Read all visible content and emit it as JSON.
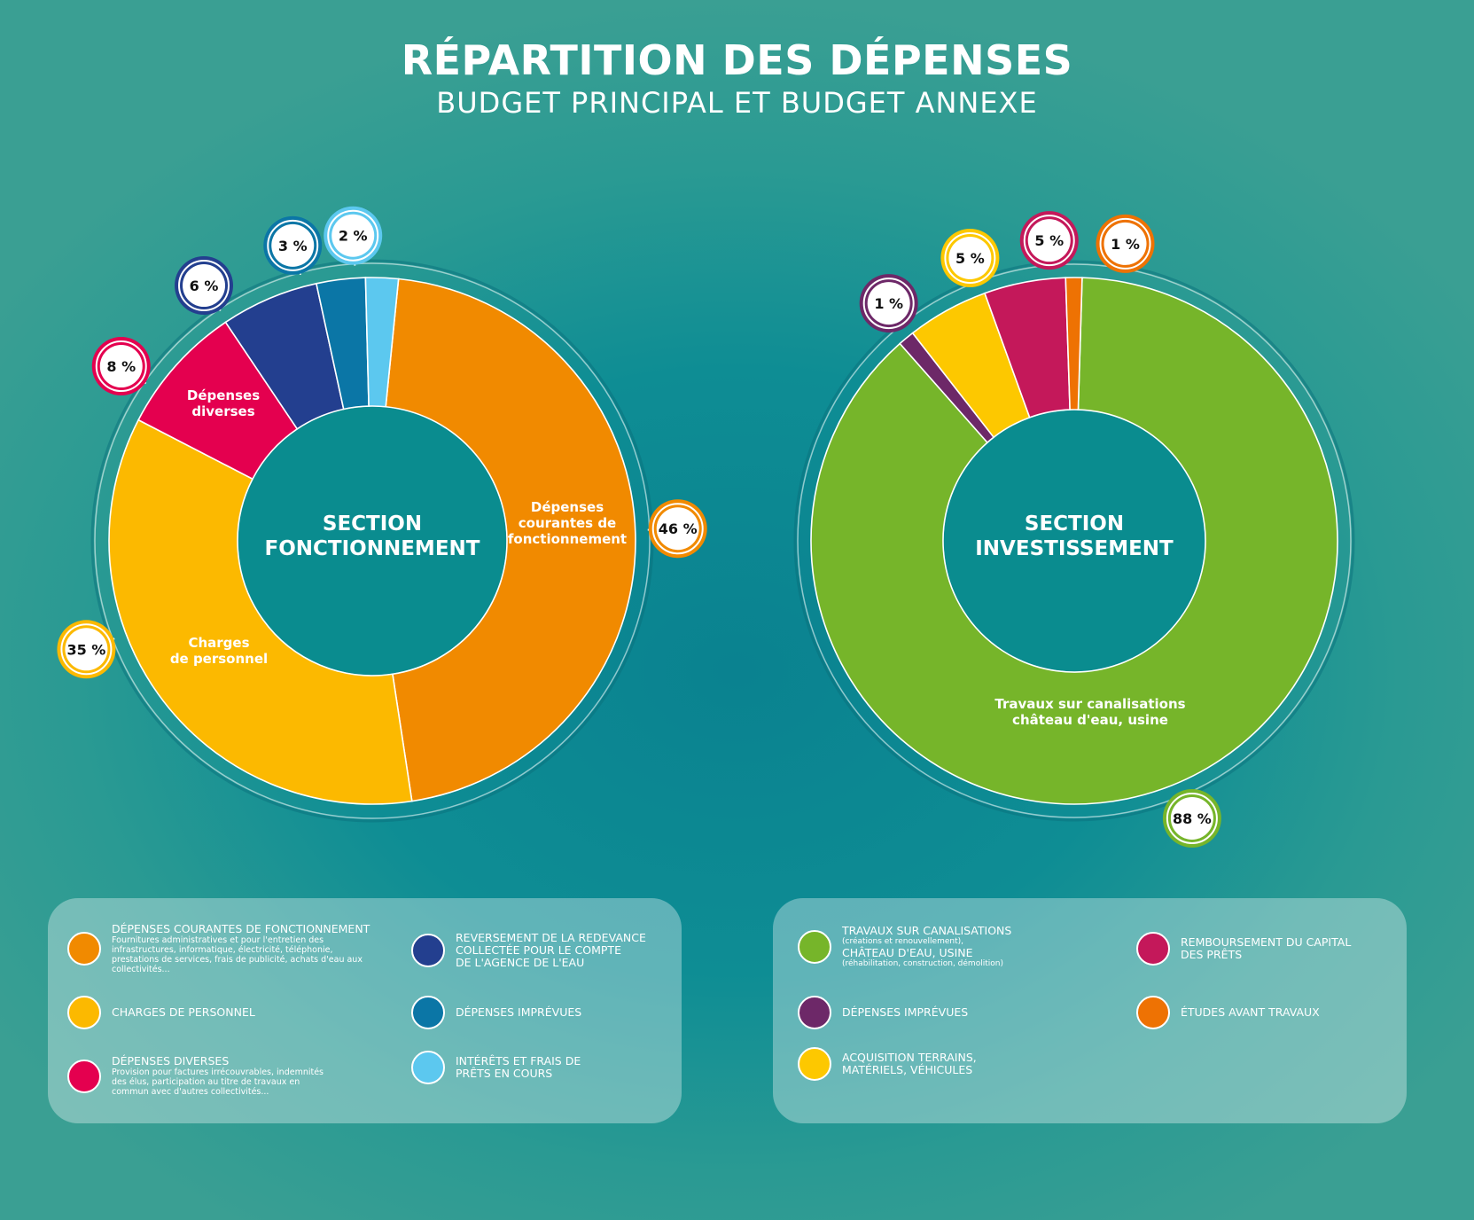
{
  "header": {
    "title": "RÉPARTITION DES DÉPENSES",
    "subtitle": "BUDGET PRINCIPAL ET BUDGET ANNEXE"
  },
  "colors": {
    "orange": "#f18a00",
    "yellow": "#fcb900",
    "crimson": "#e4004f",
    "navy": "#233f8f",
    "blue": "#0b76a6",
    "skyblue": "#5cc8ef",
    "green": "#76b52a",
    "purple": "#6d2868",
    "gold": "#fdc800",
    "magenta": "#c4185a",
    "darkorange": "#ee7203",
    "center": "#0a8c8f"
  },
  "chart_data": [
    {
      "type": "pie",
      "center_label": [
        "SECTION",
        "FONCTIONNEMENT"
      ],
      "slices": [
        {
          "key": "courantes",
          "value": 46,
          "badge": "46 %",
          "label": [
            "Dépenses",
            "courantes de",
            "fonctionnement"
          ],
          "color": "#f18a00"
        },
        {
          "key": "personnel",
          "value": 35,
          "badge": "35 %",
          "label": [
            "Charges",
            "de personnel"
          ],
          "color": "#fcb900"
        },
        {
          "key": "diverses",
          "value": 8,
          "badge": "8 %",
          "label": [
            "Dépenses",
            "diverses"
          ],
          "color": "#e4004f"
        },
        {
          "key": "reversement",
          "value": 6,
          "badge": "6 %",
          "label": [],
          "color": "#233f8f"
        },
        {
          "key": "imprevues",
          "value": 3,
          "badge": "3 %",
          "label": [],
          "color": "#0b76a6"
        },
        {
          "key": "interets",
          "value": 2,
          "badge": "2 %",
          "label": [],
          "color": "#5cc8ef"
        }
      ]
    },
    {
      "type": "pie",
      "center_label": [
        "SECTION",
        "INVESTISSEMENT"
      ],
      "slices": [
        {
          "key": "travaux",
          "value": 88,
          "badge": "88 %",
          "label": [
            "Travaux sur canalisations",
            "château d'eau, usine"
          ],
          "color": "#76b52a"
        },
        {
          "key": "imprevues",
          "value": 1,
          "badge": "1 %",
          "label": [],
          "color": "#6d2868"
        },
        {
          "key": "acquisition",
          "value": 5,
          "badge": "5 %",
          "label": [],
          "color": "#fdc800"
        },
        {
          "key": "remboursement",
          "value": 5,
          "badge": "5 %",
          "label": [],
          "color": "#c4185a"
        },
        {
          "key": "etudes",
          "value": 1,
          "badge": "1 %",
          "label": [],
          "color": "#ee7203"
        }
      ]
    }
  ],
  "legend_left": [
    {
      "title": "DÉPENSES COURANTES DE FONCTIONNEMENT",
      "desc": [
        "Fournitures administratives et pour l'entretien des",
        "infrastructures, informatique, électricité, téléphonie,",
        "prestations de services, frais de publicité, achats d'eau aux",
        "collectivités..."
      ],
      "color": "#f18a00"
    },
    {
      "title": "CHARGES DE PERSONNEL",
      "desc": [],
      "color": "#fcb900"
    },
    {
      "title": "DÉPENSES DIVERSES",
      "desc": [
        "Provision pour factures irrécouvrables, indemnités",
        "des élus, participation au titre de travaux en",
        "commun avec d'autres collectivités..."
      ],
      "color": "#e4004f"
    },
    {
      "title": [
        "REVERSEMENT DE LA REDEVANCE",
        "COLLECTÉE POUR LE COMPTE",
        "DE L'AGENCE DE L'EAU"
      ],
      "desc": [],
      "color": "#233f8f"
    },
    {
      "title": "DÉPENSES IMPRÉVUES",
      "desc": [],
      "color": "#0b76a6"
    },
    {
      "title": [
        "INTÉRÊTS ET FRAIS DE",
        "PRÊTS EN COURS"
      ],
      "desc": [],
      "color": "#5cc8ef"
    }
  ],
  "legend_right": [
    {
      "title": "TRAVAUX SUR CANALISATIONS",
      "sub1": "(créations et renouvellement),",
      "title2": "CHÂTEAU D'EAU, USINE",
      "sub2": "(réhabilitation, construction, démolition)",
      "color": "#76b52a"
    },
    {
      "title": "DÉPENSES IMPRÉVUES",
      "color": "#6d2868"
    },
    {
      "title": [
        "ACQUISITION TERRAINS,",
        "MATÉRIELS, VÉHICULES"
      ],
      "color": "#fdc800"
    },
    {
      "title": [
        "REMBOURSEMENT DU CAPITAL",
        "DES PRÊTS"
      ],
      "color": "#c4185a"
    },
    {
      "title": "ÉTUDES AVANT TRAVAUX",
      "color": "#ee7203"
    }
  ]
}
